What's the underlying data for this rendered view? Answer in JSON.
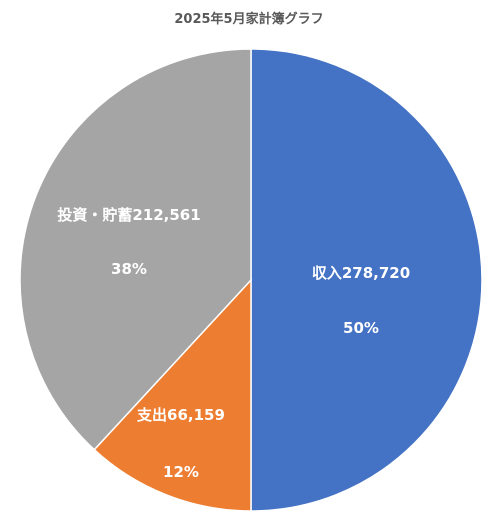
{
  "chart_data": {
    "type": "pie",
    "title": "2025年5月家計簿グラフ",
    "slices": [
      {
        "label": "収入",
        "value": 278720,
        "value_text": "278,720",
        "percent_text": "50%",
        "color": "#4472c4"
      },
      {
        "label": "支出",
        "value": 66159,
        "value_text": "66,159",
        "percent_text": "12%",
        "color": "#ed7d31"
      },
      {
        "label": "投資・貯蓄",
        "value": 212561,
        "value_text": "212,561",
        "percent_text": "38%",
        "color": "#a5a5a5"
      }
    ],
    "start_angle_deg": 0,
    "direction": "clockwise",
    "legend": "none",
    "data_labels": "inside"
  }
}
